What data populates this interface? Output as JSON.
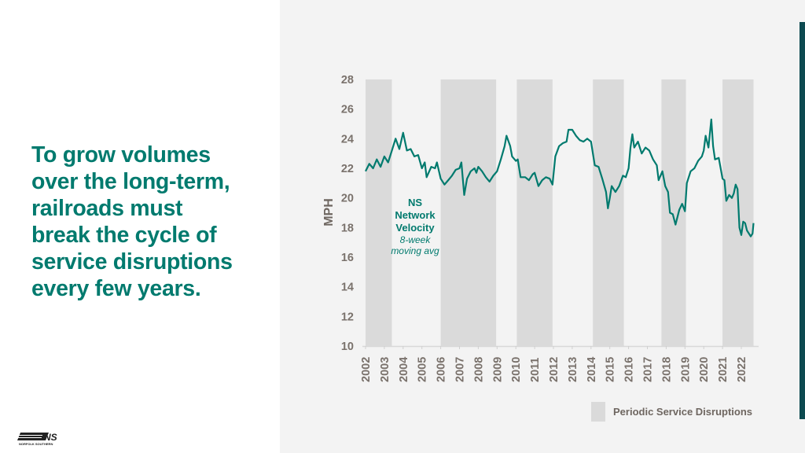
{
  "headline": [
    "To grow volumes",
    "over the long-term,",
    "railroads must",
    "break the cycle of",
    "service disruptions",
    "every few years."
  ],
  "logo": {
    "text": "NS",
    "subtext": "NORFOLK SOUTHERN"
  },
  "colors": {
    "accent": "#007a6e",
    "band": "#dadada",
    "background": "#f3f3f3",
    "bar": "#0d4a50"
  },
  "chart_data": {
    "type": "line",
    "ylabel": "MPH",
    "ylim": [
      10,
      28
    ],
    "yticks": [
      10,
      12,
      14,
      16,
      18,
      20,
      22,
      24,
      26,
      28
    ],
    "xlim": [
      2002,
      2022.75
    ],
    "xticks": [
      "2002",
      "2003",
      "2004",
      "2005",
      "2006",
      "2007",
      "2008",
      "2009",
      "2010",
      "2011",
      "2012",
      "2013",
      "2014",
      "2015",
      "2016",
      "2017",
      "2018",
      "2019",
      "2020",
      "2021",
      "2022"
    ],
    "grid": false,
    "annotation": {
      "title": [
        "NS",
        "Network",
        "Velocity"
      ],
      "subtitle": [
        "8-week",
        "moving avg"
      ]
    },
    "legend": {
      "label": "Periodic Service Disruptions",
      "placement": "bottom-right"
    },
    "shaded_periods": [
      [
        2002.0,
        2003.4
      ],
      [
        2006.0,
        2008.95
      ],
      [
        2010.05,
        2011.95
      ],
      [
        2014.1,
        2015.75
      ],
      [
        2017.75,
        2019.05
      ],
      [
        2021.0,
        2022.65
      ]
    ],
    "series": [
      {
        "x": [
          2002.0,
          2002.2,
          2002.4,
          2002.6,
          2002.8,
          2003.0,
          2003.2,
          2003.4,
          2003.6,
          2003.8,
          2004.0,
          2004.2,
          2004.4,
          2004.6,
          2004.8,
          2005.0,
          2005.15,
          2005.25,
          2005.5,
          2005.7,
          2005.8,
          2006.0,
          2006.2,
          2006.4,
          2006.6,
          2006.8,
          2007.0,
          2007.1,
          2007.25,
          2007.4,
          2007.6,
          2007.8,
          2007.9,
          2008.0,
          2008.2,
          2008.4,
          2008.6,
          2008.8,
          2009.0,
          2009.2,
          2009.4,
          2009.5,
          2009.7,
          2009.8,
          2010.0,
          2010.1,
          2010.25,
          2010.5,
          2010.7,
          2010.9,
          2011.0,
          2011.2,
          2011.4,
          2011.6,
          2011.8,
          2011.95,
          2012.1,
          2012.3,
          2012.5,
          2012.7,
          2012.8,
          2013.0,
          2013.2,
          2013.4,
          2013.6,
          2013.8,
          2014.0,
          2014.2,
          2014.4,
          2014.6,
          2014.8,
          2014.9,
          2015.0,
          2015.1,
          2015.3,
          2015.5,
          2015.7,
          2015.85,
          2016.0,
          2016.1,
          2016.2,
          2016.3,
          2016.5,
          2016.7,
          2016.9,
          2017.1,
          2017.3,
          2017.5,
          2017.6,
          2017.8,
          2017.95,
          2018.1,
          2018.2,
          2018.35,
          2018.5,
          2018.7,
          2018.85,
          2019.0,
          2019.1,
          2019.3,
          2019.5,
          2019.7,
          2019.9,
          2020.0,
          2020.1,
          2020.25,
          2020.4,
          2020.5,
          2020.6,
          2020.8,
          2021.0,
          2021.1,
          2021.2,
          2021.35,
          2021.5,
          2021.6,
          2021.7,
          2021.8,
          2021.9,
          2022.0,
          2022.1,
          2022.2,
          2022.3,
          2022.5,
          2022.6,
          2022.65
        ],
        "y": [
          21.8,
          22.3,
          22.0,
          22.6,
          22.1,
          22.8,
          22.4,
          23.2,
          24.0,
          23.3,
          24.4,
          23.2,
          23.3,
          22.8,
          22.9,
          22.0,
          22.4,
          21.4,
          22.1,
          22.0,
          22.4,
          21.3,
          20.9,
          21.2,
          21.5,
          21.9,
          22.0,
          22.4,
          20.2,
          21.3,
          21.8,
          22.0,
          21.7,
          22.1,
          21.8,
          21.4,
          21.1,
          21.5,
          21.8,
          22.6,
          23.5,
          24.2,
          23.5,
          22.8,
          22.5,
          22.6,
          21.4,
          21.4,
          21.2,
          21.6,
          21.7,
          20.8,
          21.2,
          21.4,
          21.3,
          20.9,
          22.8,
          23.5,
          23.7,
          23.8,
          24.6,
          24.6,
          24.2,
          23.9,
          23.8,
          24.0,
          23.8,
          22.2,
          22.1,
          21.3,
          20.4,
          19.3,
          20.0,
          20.8,
          20.4,
          20.8,
          21.5,
          21.4,
          22.0,
          23.4,
          24.3,
          23.4,
          23.8,
          23.0,
          23.4,
          23.2,
          22.6,
          22.2,
          21.2,
          21.8,
          20.8,
          20.4,
          19.0,
          18.9,
          18.2,
          19.2,
          19.6,
          19.1,
          21.0,
          21.8,
          22.0,
          22.5,
          22.8,
          23.2,
          24.2,
          23.4,
          25.3,
          23.5,
          22.6,
          22.7,
          21.3,
          21.2,
          19.8,
          20.2,
          20.0,
          20.3,
          20.9,
          20.6,
          18.0,
          17.5,
          18.4,
          18.3,
          17.8,
          17.4,
          17.6,
          18.3
        ]
      }
    ]
  }
}
